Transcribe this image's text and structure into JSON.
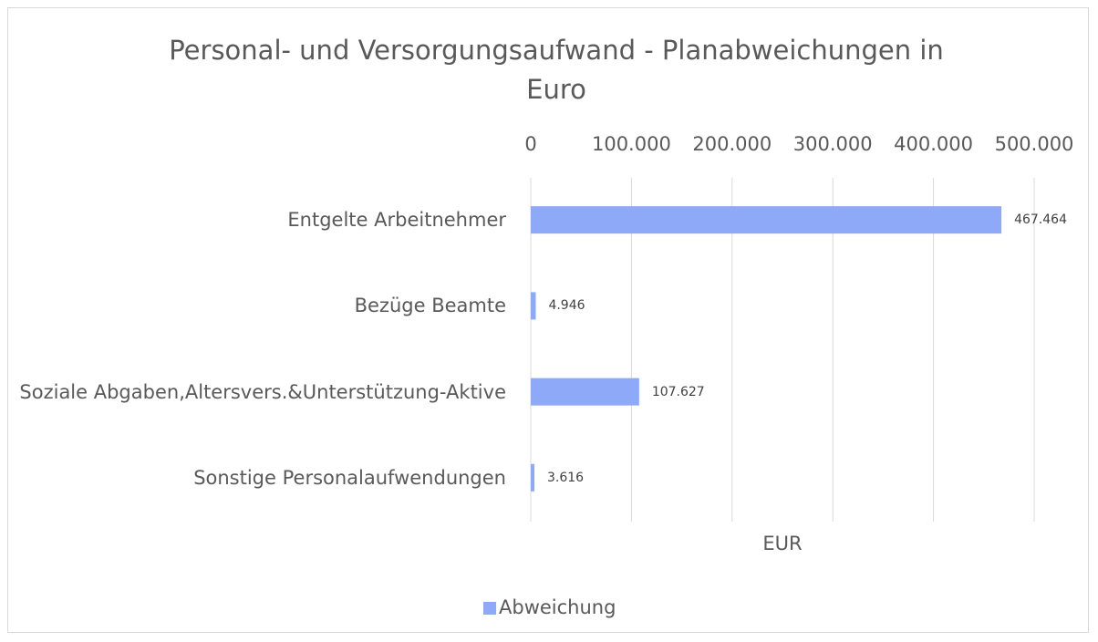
{
  "chart_data": {
    "type": "bar",
    "orientation": "horizontal",
    "title": "Personal- und Versorgungsaufwand - Planabweichungen in Euro",
    "categories": [
      "Entgelte Arbeitnehmer",
      "Bezüge Beamte",
      "Soziale Abgaben,Altersvers.&Unterstützung-Aktive",
      "Sonstige Personalaufwendungen"
    ],
    "series": [
      {
        "name": "Abweichung",
        "color": "#8ea9f8",
        "values": [
          467464,
          4946,
          107627,
          3616
        ],
        "value_labels": [
          "467.464",
          "4.946",
          "107.627",
          "3.616"
        ]
      }
    ],
    "xlabel": "EUR",
    "xlim": [
      0,
      500000
    ],
    "xticks": [
      0,
      {
        "value": 100000,
        "label": "100.000"
      },
      {
        "value": 200000,
        "label": "200.000"
      },
      {
        "value": 300000,
        "label": "300.000"
      },
      {
        "value": 400000,
        "label": "400.000"
      },
      {
        "value": 500000,
        "label": "500.000"
      }
    ],
    "grid": true,
    "legend": "bottom"
  }
}
